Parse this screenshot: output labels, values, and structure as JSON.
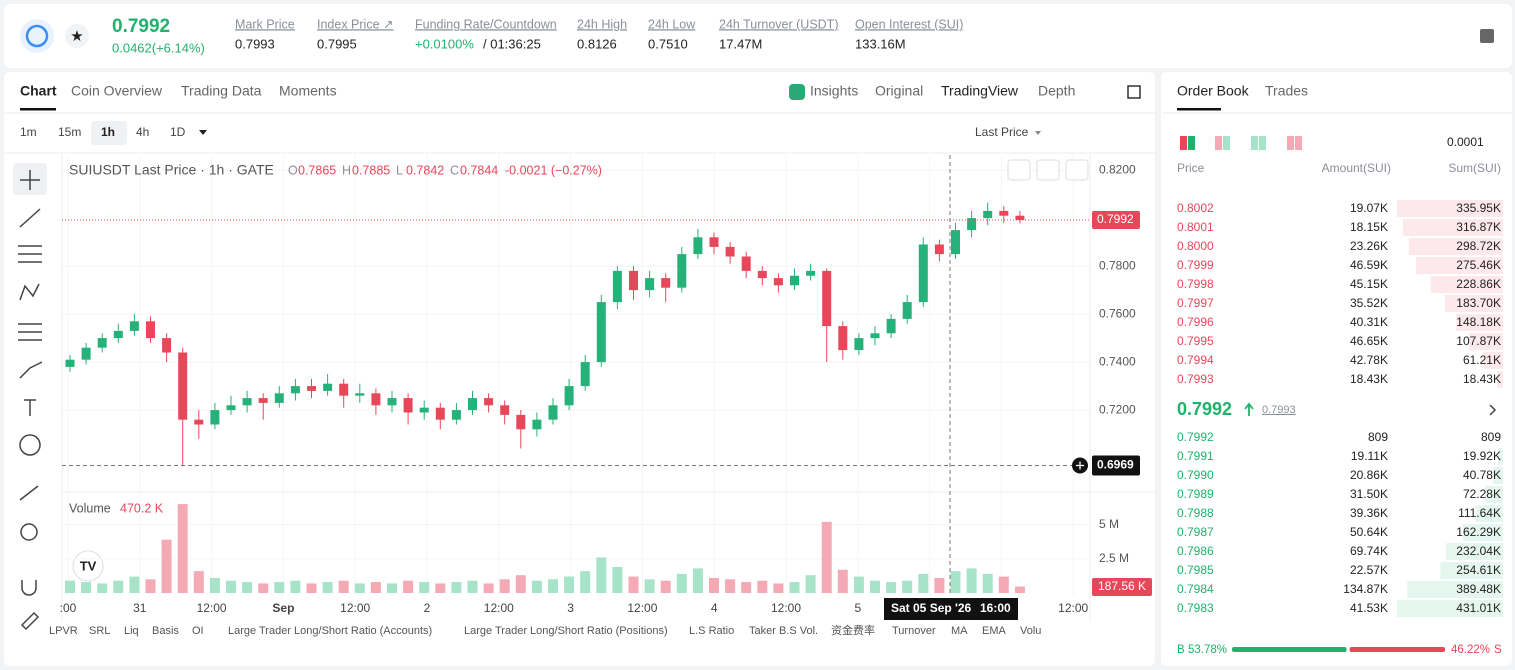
{
  "header": {
    "price": "0.7992",
    "change": "0.0462(+6.14%)",
    "stats": [
      {
        "label": "Mark Price",
        "value": "0.7993"
      },
      {
        "label": "Index Price ↗",
        "value": "0.7995"
      },
      {
        "label": "Funding Rate/Countdown",
        "value": "+0.0100%",
        "extra": "/ 01:36:25"
      },
      {
        "label": "24h High",
        "value": "0.8126"
      },
      {
        "label": "24h Low",
        "value": "0.7510"
      },
      {
        "label": "24h Turnover (USDT)",
        "value": "17.47M"
      },
      {
        "label": "Open Interest (SUI)",
        "value": "133.16M"
      }
    ]
  },
  "tabs": [
    "Chart",
    "Coin Overview",
    "Trading Data",
    "Moments"
  ],
  "views": [
    "Insights",
    "Original",
    "TradingView",
    "Depth"
  ],
  "intervals": [
    "1m",
    "15m",
    "1h",
    "4h",
    "1D"
  ],
  "price_source": "Last Price",
  "chart_data": {
    "type": "candlestick",
    "legend": {
      "title": "SUIUSDT Last Price · 1h · GATE",
      "letters": [
        "O",
        "H",
        "L",
        "C"
      ],
      "ohlc": [
        "0.7865",
        "0.7885",
        "0.7842",
        "0.7844"
      ],
      "change": "-0.0021 (−0.27%)"
    },
    "candles": [
      [
        0.738,
        0.743,
        0.736,
        0.741
      ],
      [
        0.741,
        0.748,
        0.739,
        0.746
      ],
      [
        0.746,
        0.752,
        0.744,
        0.75
      ],
      [
        0.75,
        0.756,
        0.748,
        0.753
      ],
      [
        0.753,
        0.76,
        0.751,
        0.757
      ],
      [
        0.757,
        0.759,
        0.748,
        0.75
      ],
      [
        0.75,
        0.752,
        0.74,
        0.744
      ],
      [
        0.744,
        0.746,
        0.697,
        0.716
      ],
      [
        0.716,
        0.72,
        0.708,
        0.714
      ],
      [
        0.714,
        0.723,
        0.712,
        0.72
      ],
      [
        0.72,
        0.726,
        0.718,
        0.722
      ],
      [
        0.722,
        0.728,
        0.719,
        0.725
      ],
      [
        0.725,
        0.727,
        0.716,
        0.723
      ],
      [
        0.723,
        0.73,
        0.721,
        0.727
      ],
      [
        0.727,
        0.733,
        0.724,
        0.73
      ],
      [
        0.73,
        0.733,
        0.725,
        0.728
      ],
      [
        0.728,
        0.735,
        0.726,
        0.731
      ],
      [
        0.731,
        0.733,
        0.721,
        0.726
      ],
      [
        0.726,
        0.731,
        0.723,
        0.727
      ],
      [
        0.727,
        0.729,
        0.718,
        0.722
      ],
      [
        0.722,
        0.728,
        0.719,
        0.725
      ],
      [
        0.725,
        0.727,
        0.714,
        0.719
      ],
      [
        0.719,
        0.724,
        0.716,
        0.721
      ],
      [
        0.721,
        0.723,
        0.712,
        0.716
      ],
      [
        0.716,
        0.723,
        0.714,
        0.72
      ],
      [
        0.72,
        0.728,
        0.718,
        0.725
      ],
      [
        0.725,
        0.727,
        0.719,
        0.722
      ],
      [
        0.722,
        0.724,
        0.714,
        0.718
      ],
      [
        0.718,
        0.72,
        0.704,
        0.712
      ],
      [
        0.712,
        0.719,
        0.709,
        0.716
      ],
      [
        0.716,
        0.725,
        0.714,
        0.722
      ],
      [
        0.722,
        0.733,
        0.72,
        0.73
      ],
      [
        0.73,
        0.743,
        0.728,
        0.74
      ],
      [
        0.74,
        0.768,
        0.738,
        0.765
      ],
      [
        0.765,
        0.78,
        0.762,
        0.778
      ],
      [
        0.778,
        0.78,
        0.766,
        0.77
      ],
      [
        0.77,
        0.778,
        0.767,
        0.775
      ],
      [
        0.775,
        0.777,
        0.765,
        0.771
      ],
      [
        0.771,
        0.788,
        0.769,
        0.785
      ],
      [
        0.785,
        0.7955,
        0.783,
        0.792
      ],
      [
        0.792,
        0.794,
        0.785,
        0.788
      ],
      [
        0.788,
        0.79,
        0.781,
        0.784
      ],
      [
        0.784,
        0.786,
        0.775,
        0.778
      ],
      [
        0.778,
        0.78,
        0.772,
        0.775
      ],
      [
        0.775,
        0.777,
        0.769,
        0.772
      ],
      [
        0.772,
        0.779,
        0.77,
        0.776
      ],
      [
        0.776,
        0.781,
        0.774,
        0.778
      ],
      [
        0.778,
        0.779,
        0.74,
        0.755
      ],
      [
        0.755,
        0.757,
        0.741,
        0.745
      ],
      [
        0.745,
        0.752,
        0.743,
        0.75
      ],
      [
        0.75,
        0.755,
        0.747,
        0.752
      ],
      [
        0.752,
        0.76,
        0.75,
        0.758
      ],
      [
        0.758,
        0.768,
        0.756,
        0.765
      ],
      [
        0.765,
        0.792,
        0.763,
        0.789
      ],
      [
        0.789,
        0.791,
        0.782,
        0.785
      ],
      [
        0.785,
        0.798,
        0.783,
        0.795
      ],
      [
        0.795,
        0.803,
        0.792,
        0.8
      ],
      [
        0.8,
        0.8065,
        0.797,
        0.803
      ],
      [
        0.803,
        0.805,
        0.798,
        0.801
      ],
      [
        0.801,
        0.803,
        0.7978,
        0.7992
      ]
    ],
    "ylim": [
      0.6867,
      0.8263
    ],
    "yticks": [
      {
        "value": 0.82,
        "label": "0.8200"
      },
      {
        "value": 0.78,
        "label": "0.7800"
      },
      {
        "value": 0.76,
        "label": "0.7600"
      },
      {
        "value": 0.74,
        "label": "0.7400"
      },
      {
        "value": 0.72,
        "label": "0.7200"
      }
    ],
    "last_price": 0.7992,
    "crosshair": {
      "price": 0.6969,
      "date_label": "Sat 05 Sep '26",
      "time_label": "16:00"
    },
    "x_labels": [
      ":00",
      "31",
      "12:00",
      "Sep",
      "12:00",
      "2",
      "12:00",
      "3",
      "12:00",
      "4",
      "12:00",
      "5",
      null,
      null,
      "12:00"
    ],
    "volume": {
      "title": "Volume",
      "last_label": "470.2 K",
      "current_label": "187.56 K",
      "values": [
        900000,
        800000,
        700000,
        900000,
        1200000,
        1000000,
        3900000,
        6500000,
        1600000,
        1100000,
        900000,
        800000,
        700000,
        800000,
        900000,
        700000,
        800000,
        900000,
        700000,
        800000,
        700000,
        900000,
        800000,
        700000,
        800000,
        900000,
        700000,
        1000000,
        1300000,
        900000,
        1000000,
        1200000,
        1600000,
        2600000,
        1900000,
        1200000,
        1000000,
        900000,
        1400000,
        1800000,
        1100000,
        1000000,
        800000,
        900000,
        700000,
        800000,
        1300000,
        5200000,
        1700000,
        1200000,
        900000,
        800000,
        900000,
        1400000,
        1100000,
        1600000,
        1800000,
        1400000,
        1200000,
        470200
      ],
      "ylim": [
        0,
        6800000
      ],
      "yticks": [
        {
          "value": 5000000,
          "label": "5 M"
        },
        {
          "value": 2500000,
          "label": "2.5 M"
        }
      ]
    }
  },
  "indicators": [
    "LPVR",
    "SRL",
    "Liq",
    "Basis",
    "OI",
    "Large Trader Long/Short Ratio (Accounts)",
    "Large Trader Long/Short Ratio (Positions)",
    "L.S Ratio",
    "Taker B.S Vol.",
    "资金费率",
    "Turnover",
    "MA",
    "EMA",
    "Volu"
  ],
  "order_book": {
    "tabs": [
      "Order Book",
      "Trades"
    ],
    "precision": "0.0001",
    "columns": [
      "Price",
      "Amount(SUI)",
      "Sum(SUI)"
    ],
    "asks": {
      "prices": [
        "0.8002",
        "0.8001",
        "0.8000",
        "0.7999",
        "0.7998",
        "0.7997",
        "0.7996",
        "0.7995",
        "0.7994",
        "0.7993"
      ],
      "amounts": [
        "19.07K",
        "18.15K",
        "23.26K",
        "46.59K",
        "45.15K",
        "35.52K",
        "40.31K",
        "46.65K",
        "42.78K",
        "18.43K"
      ],
      "sums": [
        335.95,
        316.87,
        298.72,
        275.46,
        228.86,
        183.7,
        148.18,
        107.87,
        61.21,
        18.43
      ],
      "sum_labels": [
        "335.95K",
        "316.87K",
        "298.72K",
        "275.46K",
        "228.86K",
        "183.70K",
        "148.18K",
        "107.87K",
        "61.21K",
        "18.43K"
      ]
    },
    "mid": {
      "price": "0.7992",
      "mark": "0.7993"
    },
    "bids": {
      "prices": [
        "0.7992",
        "0.7991",
        "0.7990",
        "0.7989",
        "0.7988",
        "0.7987",
        "0.7986",
        "0.7985",
        "0.7984",
        "0.7983"
      ],
      "amounts": [
        "809",
        "19.11K",
        "20.86K",
        "31.50K",
        "39.36K",
        "50.64K",
        "69.74K",
        "22.57K",
        "134.87K",
        "41.53K"
      ],
      "sums": [
        0.809,
        19.92,
        40.78,
        72.28,
        111.64,
        162.29,
        232.04,
        254.61,
        389.48,
        431.01
      ],
      "sum_labels": [
        "809",
        "19.92K",
        "40.78K",
        "72.28K",
        "111.64K",
        "162.29K",
        "232.04K",
        "254.61K",
        "389.48K",
        "431.01K"
      ]
    },
    "ratio": {
      "buy_label": "B",
      "sell_label": "S",
      "values": [
        53.78,
        46.22
      ],
      "value_labels": [
        "53.78%",
        "46.22%"
      ]
    }
  }
}
